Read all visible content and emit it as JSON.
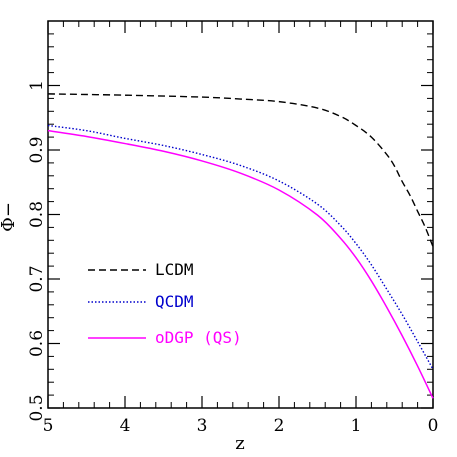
{
  "chart_data": {
    "type": "line",
    "xlabel": "z",
    "ylabel": "Φ−",
    "xlim": [
      5,
      0
    ],
    "ylim": [
      0.5,
      1.1
    ],
    "x_ticks": [
      5,
      4,
      3,
      2,
      1,
      0
    ],
    "y_ticks": [
      0.5,
      0.6,
      0.7,
      0.8,
      0.9,
      1
    ],
    "y_tick_labels": [
      "0.5",
      "0.6",
      "0.7",
      "0.8",
      "0.9",
      "1"
    ],
    "legend_position": "left",
    "series": [
      {
        "name": "LCDM",
        "color": "#000000",
        "style": "dashed",
        "x": [
          5,
          4,
          3,
          2.5,
          2,
          1.5,
          1.2,
          1,
          0.8,
          0.6,
          0.5,
          0.4,
          0.3,
          0.2,
          0.1,
          0
        ],
        "y": [
          0.987,
          0.985,
          0.982,
          0.979,
          0.975,
          0.965,
          0.952,
          0.938,
          0.92,
          0.893,
          0.875,
          0.851,
          0.83,
          0.805,
          0.78,
          0.75
        ]
      },
      {
        "name": "QCDM",
        "color": "#0000cc",
        "style": "dotted",
        "x": [
          5,
          4.5,
          4,
          3.5,
          3,
          2.5,
          2,
          1.5,
          1.2,
          1,
          0.8,
          0.6,
          0.4,
          0.2,
          0
        ],
        "y": [
          0.938,
          0.93,
          0.918,
          0.907,
          0.893,
          0.876,
          0.852,
          0.816,
          0.783,
          0.755,
          0.722,
          0.684,
          0.645,
          0.603,
          0.56
        ]
      },
      {
        "name": "oDGP (QS)",
        "color": "#ff00ff",
        "style": "solid",
        "x": [
          5,
          4.5,
          4,
          3.5,
          3,
          2.5,
          2,
          1.5,
          1.2,
          1,
          0.8,
          0.6,
          0.4,
          0.2,
          0
        ],
        "y": [
          0.93,
          0.921,
          0.91,
          0.898,
          0.883,
          0.864,
          0.838,
          0.799,
          0.763,
          0.733,
          0.697,
          0.656,
          0.612,
          0.565,
          0.515
        ]
      }
    ]
  }
}
